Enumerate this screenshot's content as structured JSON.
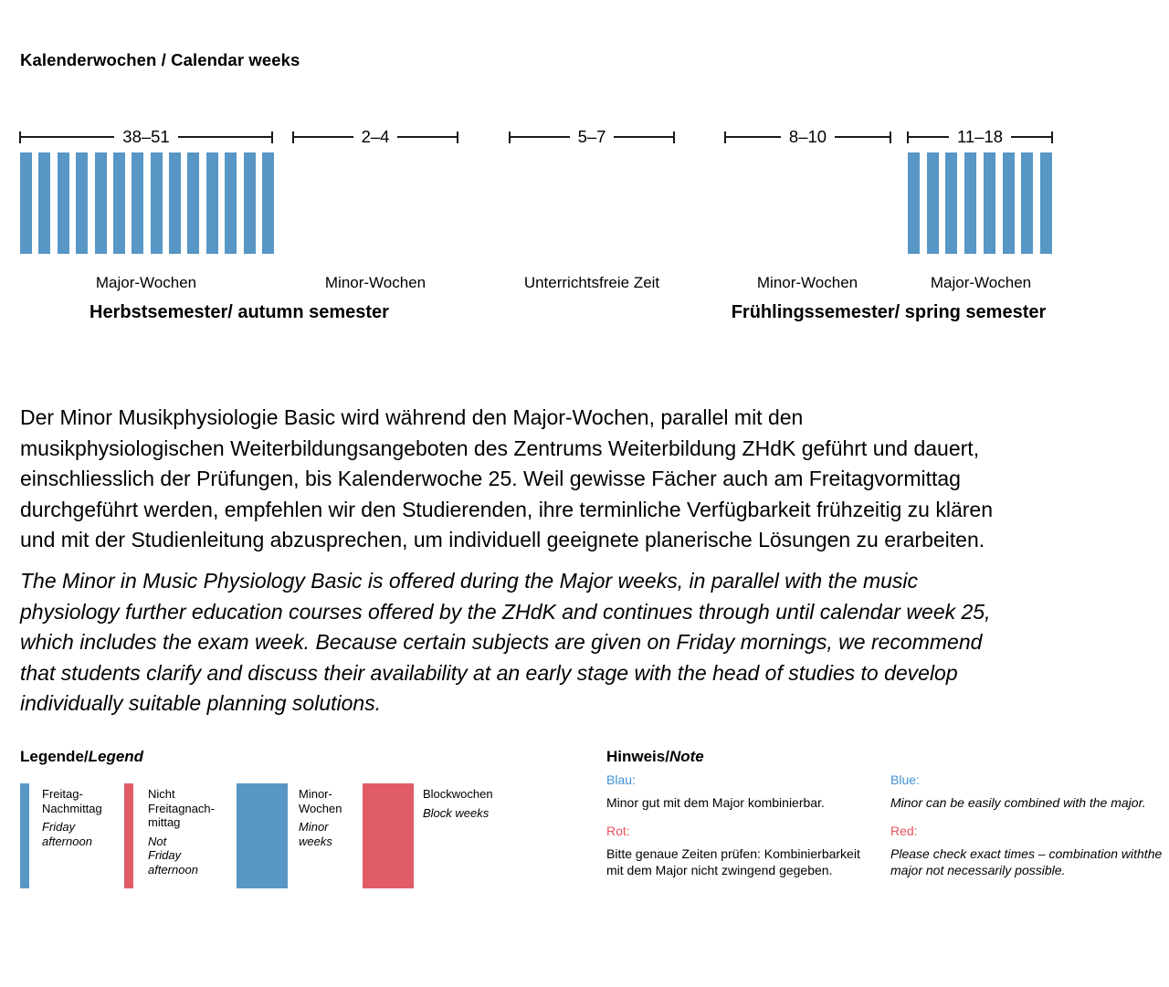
{
  "title": "Kalenderwochen / Calendar weeks",
  "colors": {
    "bar_blue": "#5796C5",
    "bar_red": "#E05C67",
    "note_blue": "#4191D8",
    "note_red": "#EA515B"
  },
  "timeline": {
    "groups": [
      {
        "range": "38–51",
        "label": "Major-Wochen",
        "bar_count": 14
      },
      {
        "range": "2–4",
        "label": "Minor-Wochen",
        "bar_count": 0
      },
      {
        "range": "5–7",
        "label": "Unterrichtsfreie Zeit",
        "bar_count": 0
      },
      {
        "range": "8–10",
        "label": "Minor-Wochen",
        "bar_count": 0
      },
      {
        "range": "11–18",
        "label": "Major-Wochen",
        "bar_count": 8
      }
    ],
    "semesters": [
      {
        "label": "Herbstsemester/ autumn semester"
      },
      {
        "label": "Frühlingssemester/ spring semester"
      }
    ]
  },
  "paragraphs": {
    "german_lines": [
      "Der Minor Musikphysiologie Basic wird während den Major-Wochen, parallel mit den",
      "musikphysiologischen Weiterbildungsangeboten des Zentrums Weiterbildung ZHdK geführt und dauert,",
      "einschliesslich der Prüfungen, bis Kalenderwoche 25. Weil gewisse Fächer auch am Freitagvormittag",
      "durchgeführt werden, empfehlen wir den Studierenden, ihre terminliche Verfügbarkeit frühzeitig zu klären",
      "und mit der Studienleitung abzusprechen, um individuell geeignete planerische Lösungen zu erarbeiten."
    ],
    "english_lines": [
      "The Minor in Music Physiology Basic is offered during the Major weeks, in parallel with the music",
      "physiology further education courses offered by the ZHdK and continues through until calendar week 25,",
      "which includes the exam week. Because certain subjects are given on Friday mornings, we recommend",
      "that students clarify and discuss their availability at an early stage with the head of studies to develop",
      "individually suitable planning solutions."
    ]
  },
  "legend": {
    "title_normal": "Legende/",
    "title_italic": "Legend",
    "items": [
      {
        "color": "blue",
        "size": "thin",
        "label_lines": [
          "Freitag-",
          "Nachmittag"
        ],
        "italic_lines": [
          "Friday",
          "afternoon"
        ]
      },
      {
        "color": "red",
        "size": "thin",
        "label_lines": [
          "Nicht",
          "Freitagnach-",
          "mittag"
        ],
        "italic_lines": [
          "Not",
          "Friday",
          "afternoon"
        ]
      },
      {
        "color": "blue",
        "size": "wide",
        "label_lines": [
          "Minor-",
          "Wochen"
        ],
        "italic_lines": [
          "Minor",
          "weeks"
        ]
      },
      {
        "color": "red",
        "size": "wide",
        "label_lines": [
          "Blockwochen"
        ],
        "italic_lines": [
          "Block weeks"
        ]
      }
    ]
  },
  "notes": {
    "title_normal": "Hinweis/",
    "title_italic": "Note",
    "german": [
      {
        "heading": "Blau:",
        "body": "Minor gut mit dem Major kombinierbar."
      },
      {
        "heading": "Rot:",
        "body": "Bitte genaue Zeiten prüfen: Kombinierbarkeit mit dem Major nicht zwingend gegeben."
      }
    ],
    "english": [
      {
        "heading": "Blue:",
        "body": "Minor can be easily combined with the major."
      },
      {
        "heading": "Red:",
        "body": "Please check exact times – combination withthe major not necessarily possible."
      }
    ]
  }
}
